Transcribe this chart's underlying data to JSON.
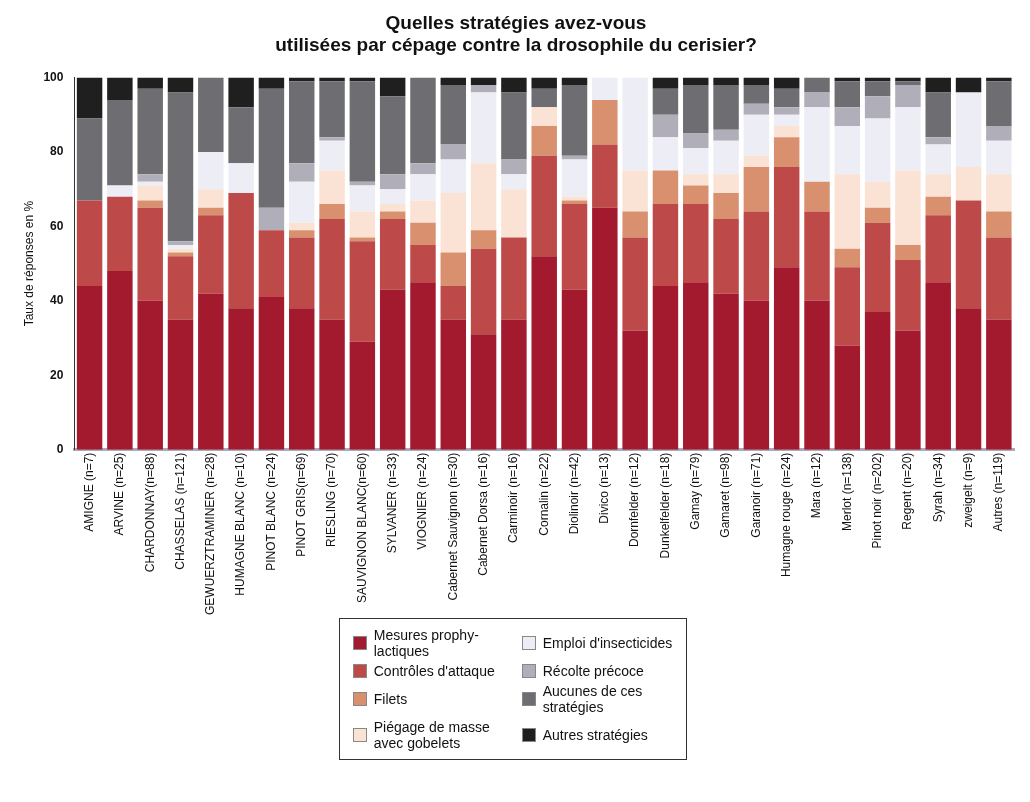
{
  "chart_data": {
    "type": "bar",
    "stacked": true,
    "title": "Quelles stratégies avez-vous\nutilisées par cépage contre la drosophile du cerisier?",
    "ylabel": "Taux de réponses en %",
    "ylim": [
      0,
      100
    ],
    "yticks": [
      0,
      20,
      40,
      60,
      80,
      100
    ],
    "grid": false,
    "legend": "bottom",
    "categories": [
      "AMIGNE (n=7)",
      "ARVINE (n=25)",
      "CHARDONNAY(n=88)",
      "CHASSELAS (n=121)",
      "GEWUERZTRAMINER (n=28)",
      "HUMAGNE BLANC (n=10)",
      "PINOT BLANC (n=24)",
      "PINOT GRIS(n=69)",
      "RIESLING (n=70)",
      "SAUVIGNON BLANC(n=60)",
      "SYLVANER (n=33)",
      "VIOGNIER (n=24)",
      "Cabernet Sauvignon (n=30)",
      "Cabernet Dorsa (n=16)",
      "Carminoir (n=16)",
      "Cornalin (n=22)",
      "Diolinoir (n=42)",
      "Divico (n=13)",
      "Dornfelder (n=12)",
      "Dunkelfelder (n=18)",
      "Gamay (n=79)",
      "Gamaret (n=98)",
      "Garanoir (n=71)",
      "Humagne rouge (n=24)",
      "Mara (n=12)",
      "Merlot (n=138)",
      "Pinot noir (n=202)",
      "Regent (n=20)",
      "Syrah (n=34)",
      "zweigelt (n=9)",
      "Autres (n=119)"
    ],
    "series": [
      {
        "name": "Mesures prophy-\nlactiques",
        "color": "#a3192e",
        "values": [
          44,
          48,
          40,
          35,
          42,
          38,
          41,
          38,
          35,
          29,
          43,
          45,
          35,
          31,
          35,
          52,
          43,
          65,
          32,
          44,
          45,
          42,
          40,
          49,
          40,
          28,
          37,
          32,
          45,
          38,
          35
        ]
      },
      {
        "name": "Contrôles d'attaque",
        "color": "#bd4a48",
        "values": [
          23,
          20,
          25,
          17,
          21,
          31,
          18,
          19,
          27,
          27,
          19,
          10,
          9,
          23,
          22,
          27,
          23,
          17,
          25,
          22,
          21,
          20,
          24,
          27,
          24,
          21,
          24,
          19,
          18,
          29,
          22
        ]
      },
      {
        "name": "Filets",
        "color": "#d9906e",
        "values": [
          0,
          0,
          2,
          1,
          2,
          0,
          0,
          2,
          4,
          1,
          2,
          6,
          9,
          5,
          0,
          8,
          1,
          12,
          7,
          9,
          5,
          7,
          12,
          8,
          8,
          5,
          4,
          4,
          5,
          0,
          7
        ]
      },
      {
        "name": "Piégage de masse\navec gobelets",
        "color": "#fae2d4",
        "values": [
          0,
          0,
          4,
          1,
          5,
          0,
          0,
          2,
          9,
          7,
          2,
          6,
          16,
          18,
          13,
          5,
          1,
          0,
          11,
          0,
          3,
          5,
          3,
          3,
          0,
          20,
          7,
          20,
          6,
          9,
          10
        ]
      },
      {
        "name": "Emploi d'insecticides",
        "color": "#ededf5",
        "values": [
          0,
          3,
          1,
          1,
          10,
          8,
          0,
          11,
          8,
          7,
          4,
          7,
          9,
          19,
          4,
          0,
          10,
          6,
          25,
          9,
          7,
          9,
          11,
          3,
          20,
          13,
          17,
          17,
          8,
          20,
          9
        ]
      },
      {
        "name": "Récolte précoce",
        "color": "#b0aeb8",
        "values": [
          0,
          0,
          2,
          1,
          0,
          0,
          6,
          5,
          1,
          1,
          4,
          3,
          4,
          2,
          4,
          0,
          1,
          0,
          0,
          6,
          4,
          3,
          3,
          2,
          4,
          5,
          6,
          6,
          2,
          0,
          4
        ]
      },
      {
        "name": "Aucunes de ces\nstratégies",
        "color": "#6d6d72",
        "values": [
          22,
          23,
          23,
          40,
          20,
          15,
          32,
          22,
          15,
          27,
          21,
          23,
          16,
          0,
          18,
          5,
          19,
          0,
          0,
          7,
          13,
          12,
          5,
          5,
          4,
          7,
          4,
          1,
          12,
          0,
          12
        ]
      },
      {
        "name": "Autres stratégies",
        "color": "#1f1f1f",
        "values": [
          11,
          6,
          3,
          4,
          0,
          8,
          3,
          1,
          1,
          1,
          5,
          0,
          2,
          2,
          4,
          3,
          2,
          0,
          0,
          3,
          2,
          2,
          2,
          3,
          0,
          1,
          1,
          1,
          4,
          4,
          1
        ]
      }
    ]
  }
}
